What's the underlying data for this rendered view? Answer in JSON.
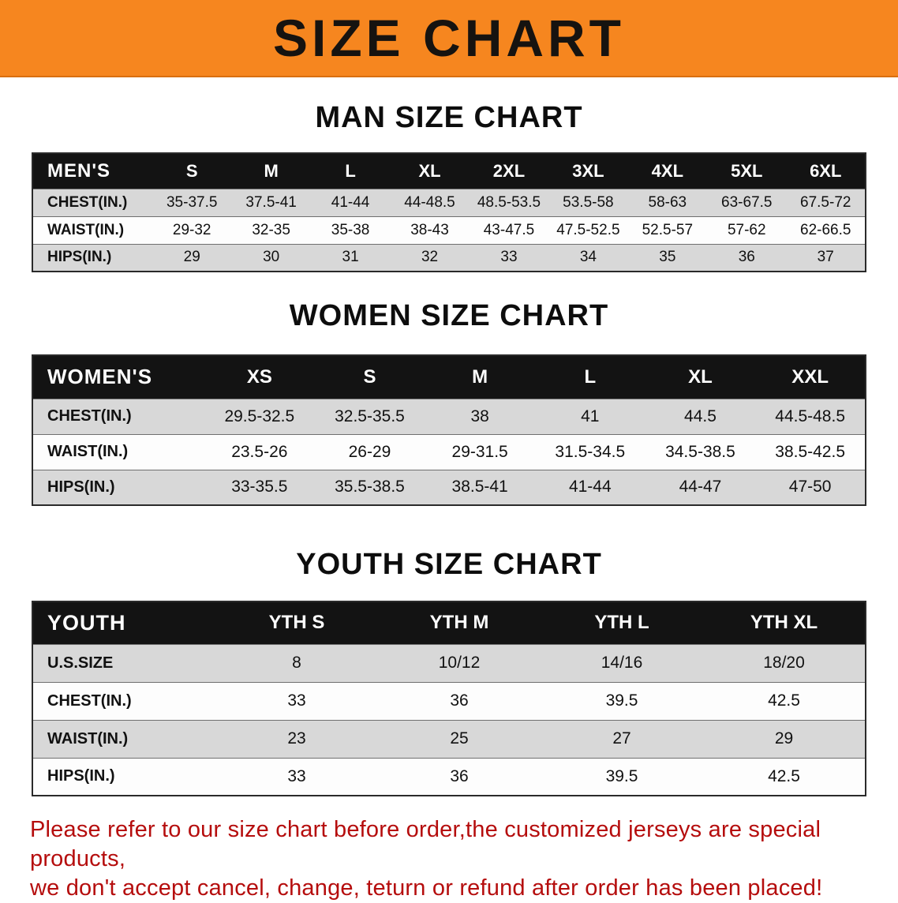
{
  "banner": {
    "title": "SIZE CHART"
  },
  "sections": {
    "men": {
      "heading": "MAN SIZE CHART",
      "table": {
        "header": [
          "MEN'S",
          "S",
          "M",
          "L",
          "XL",
          "2XL",
          "3XL",
          "4XL",
          "5XL",
          "6XL"
        ],
        "rows": [
          [
            "CHEST(IN.)",
            "35-37.5",
            "37.5-41",
            "41-44",
            "44-48.5",
            "48.5-53.5",
            "53.5-58",
            "58-63",
            "63-67.5",
            "67.5-72"
          ],
          [
            "WAIST(IN.)",
            "29-32",
            "32-35",
            "35-38",
            "38-43",
            "43-47.5",
            "47.5-52.5",
            "52.5-57",
            "57-62",
            "62-66.5"
          ],
          [
            "HIPS(IN.)",
            "29",
            "30",
            "31",
            "32",
            "33",
            "34",
            "35",
            "36",
            "37"
          ]
        ]
      }
    },
    "women": {
      "heading": "WOMEN SIZE CHART",
      "table": {
        "header": [
          "WOMEN'S",
          "XS",
          "S",
          "M",
          "L",
          "XL",
          "XXL"
        ],
        "rows": [
          [
            "CHEST(IN.)",
            "29.5-32.5",
            "32.5-35.5",
            "38",
            "41",
            "44.5",
            "44.5-48.5"
          ],
          [
            "WAIST(IN.)",
            "23.5-26",
            "26-29",
            "29-31.5",
            "31.5-34.5",
            "34.5-38.5",
            "38.5-42.5"
          ],
          [
            "HIPS(IN.)",
            "33-35.5",
            "35.5-38.5",
            "38.5-41",
            "41-44",
            "44-47",
            "47-50"
          ]
        ]
      }
    },
    "youth": {
      "heading": "YOUTH SIZE CHART",
      "table": {
        "header": [
          "YOUTH",
          "YTH S",
          "YTH M",
          "YTH L",
          "YTH XL"
        ],
        "rows": [
          [
            "U.S.SIZE",
            "8",
            "10/12",
            "14/16",
            "18/20"
          ],
          [
            "CHEST(IN.)",
            "33",
            "36",
            "39.5",
            "42.5"
          ],
          [
            "WAIST(IN.)",
            "23",
            "25",
            "27",
            "29"
          ],
          [
            "HIPS(IN.)",
            "33",
            "36",
            "39.5",
            "42.5"
          ]
        ]
      }
    }
  },
  "footer": {
    "line1": "Please refer to our size chart before order,the customized jerseys are special products,",
    "line2": "we don't accept cancel, change, teturn or refund after order has been placed!"
  },
  "colors": {
    "banner_orange": "#f6861f",
    "table_header_black": "#131313",
    "row_gray": "#d8d8d8",
    "footer_red": "#b50d0d"
  }
}
